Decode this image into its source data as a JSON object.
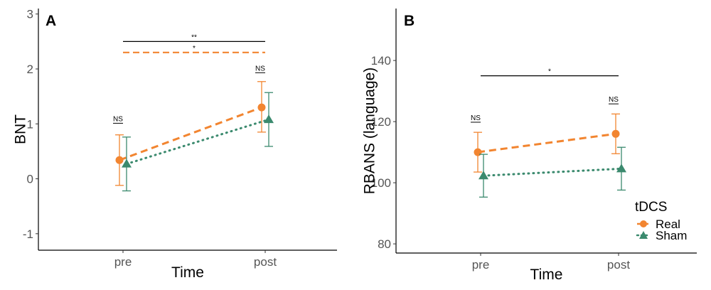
{
  "colors": {
    "real": "#F28530",
    "sham": "#3B8A6E",
    "axis": "#000000",
    "tick": "#555555"
  },
  "legend": {
    "title": "tDCS",
    "items": [
      {
        "label": "Real",
        "shape": "circle",
        "color": "#F28530"
      },
      {
        "label": "Sham",
        "shape": "triangle",
        "color": "#3B8A6E"
      }
    ]
  },
  "chart_data": [
    {
      "panel": "A",
      "type": "line",
      "title": "",
      "xlabel": "Time",
      "ylabel": "BNT",
      "categories": [
        "pre",
        "post"
      ],
      "ylim": [
        -1.3,
        3.1
      ],
      "yticks": [
        -1,
        0,
        1,
        2,
        3
      ],
      "grid": false,
      "series": [
        {
          "name": "Real",
          "values": [
            0.34,
            1.3
          ],
          "lower": [
            -0.12,
            0.85
          ],
          "upper": [
            0.8,
            1.77
          ],
          "line": "dashed"
        },
        {
          "name": "Sham",
          "values": [
            0.27,
            1.08
          ],
          "lower": [
            -0.22,
            0.59
          ],
          "upper": [
            0.76,
            1.57
          ],
          "line": "dotted"
        }
      ],
      "annotations": [
        {
          "text": "NS",
          "x": "pre",
          "y": 1.05
        },
        {
          "text": "NS",
          "x": "post",
          "y": 1.97
        }
      ],
      "brackets": [
        {
          "text": "**",
          "from": "pre",
          "to": "post",
          "y": 2.5,
          "style": "solid",
          "color": "#000000"
        },
        {
          "text": "*",
          "from": "pre",
          "to": "post",
          "y": 2.3,
          "style": "dashed",
          "color": "#F28530"
        }
      ]
    },
    {
      "panel": "B",
      "type": "line",
      "title": "",
      "xlabel": "Time",
      "ylabel": "RBANS (language)",
      "categories": [
        "pre",
        "post"
      ],
      "ylim": [
        77,
        157
      ],
      "yticks": [
        80,
        100,
        120,
        140
      ],
      "grid": false,
      "series": [
        {
          "name": "Real",
          "values": [
            110.0,
            116.0
          ],
          "lower": [
            103.5,
            109.5
          ],
          "upper": [
            116.5,
            122.5
          ],
          "line": "dashed"
        },
        {
          "name": "Sham",
          "values": [
            102.3,
            104.6
          ],
          "lower": [
            95.3,
            97.6
          ],
          "upper": [
            109.3,
            111.6
          ],
          "line": "dotted"
        }
      ],
      "annotations": [
        {
          "text": "NS",
          "x": "pre",
          "y": 120.5
        },
        {
          "text": "NS",
          "x": "post",
          "y": 126.5
        }
      ],
      "brackets": [
        {
          "text": "*",
          "from": "pre",
          "to": "post",
          "y": 135,
          "style": "solid",
          "color": "#000000"
        }
      ]
    }
  ]
}
